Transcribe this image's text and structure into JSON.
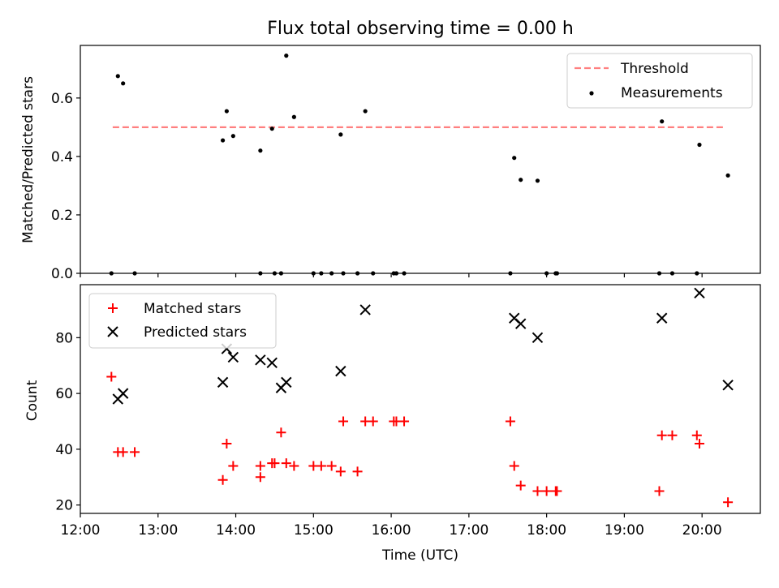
{
  "title": "Flux total observing time = 0.00 h",
  "colors": {
    "threshold": "#ff7f7f",
    "measurement": "#000000",
    "matched": "#ff0000",
    "predicted": "#000000"
  },
  "chart_data": [
    {
      "type": "scatter",
      "ylabel": "Matched/Predicted stars",
      "xlim": [
        "12:00",
        "20:45"
      ],
      "ylim": [
        0,
        0.78
      ],
      "yticks": [
        0.0,
        0.2,
        0.4,
        0.6
      ],
      "yticklabels": [
        "0.0",
        "0.2",
        "0.4",
        "0.6"
      ],
      "legend": {
        "position": "top-right",
        "entries": [
          "Threshold",
          "Measurements"
        ]
      },
      "series": [
        {
          "name": "Threshold",
          "style": "dashed-line",
          "x": [
            "12:25",
            "20:18"
          ],
          "y": [
            0.5,
            0.5
          ]
        },
        {
          "name": "Measurements",
          "style": "dot",
          "x": [
            "12:24",
            "12:29",
            "12:33",
            "12:42",
            "13:50",
            "13:53",
            "13:58",
            "14:19",
            "14:19",
            "14:28",
            "14:30",
            "14:35",
            "14:39",
            "14:45",
            "15:00",
            "15:06",
            "15:14",
            "15:21",
            "15:23",
            "15:34",
            "15:40",
            "15:46",
            "16:02",
            "16:04",
            "16:10",
            "17:32",
            "17:35",
            "17:40",
            "17:53",
            "18:00",
            "18:07",
            "18:08",
            "19:27",
            "19:29",
            "19:37",
            "19:56",
            "19:58",
            "20:20"
          ],
          "y": [
            0.0,
            0.675,
            0.65,
            0.0,
            0.455,
            0.555,
            0.47,
            0.42,
            0.0,
            0.495,
            0.0,
            0.0,
            0.745,
            0.535,
            0.0,
            0.0,
            0.0,
            0.475,
            0.0,
            0.0,
            0.555,
            0.0,
            0.0,
            0.0,
            0.0,
            0.0,
            0.395,
            0.32,
            0.317,
            0.0,
            0.0,
            0.0,
            0.0,
            0.52,
            0.0,
            0.0,
            0.44,
            0.335
          ]
        }
      ]
    },
    {
      "type": "scatter",
      "xlabel": "Time (UTC)",
      "ylabel": "Count",
      "xlim": [
        "12:00",
        "20:45"
      ],
      "ylim": [
        17,
        99
      ],
      "xticklabels": [
        "12:00",
        "13:00",
        "14:00",
        "15:00",
        "16:00",
        "17:00",
        "18:00",
        "19:00",
        "20:00"
      ],
      "yticks": [
        20,
        40,
        60,
        80
      ],
      "yticklabels": [
        "20",
        "40",
        "60",
        "80"
      ],
      "legend": {
        "position": "top-left",
        "entries": [
          "Matched stars",
          "Predicted stars"
        ]
      },
      "series": [
        {
          "name": "Matched stars",
          "style": "plus",
          "x": [
            "12:24",
            "12:29",
            "12:33",
            "12:42",
            "13:50",
            "13:53",
            "13:58",
            "14:19",
            "14:19",
            "14:28",
            "14:30",
            "14:35",
            "14:39",
            "14:45",
            "15:00",
            "15:06",
            "15:14",
            "15:21",
            "15:23",
            "15:34",
            "15:40",
            "15:46",
            "16:02",
            "16:04",
            "16:10",
            "17:32",
            "17:35",
            "17:40",
            "17:53",
            "18:00",
            "18:07",
            "18:08",
            "19:27",
            "19:29",
            "19:37",
            "19:56",
            "19:58",
            "20:20"
          ],
          "y": [
            66,
            39,
            39,
            39,
            29,
            42,
            34,
            30,
            34,
            35,
            35,
            46,
            35,
            34,
            34,
            34,
            34,
            32,
            50,
            32,
            50,
            50,
            50,
            50,
            50,
            50,
            34,
            27,
            25,
            25,
            25,
            25,
            25,
            45,
            45,
            45,
            42,
            21
          ]
        },
        {
          "name": "Predicted stars",
          "style": "x",
          "x": [
            "12:29",
            "12:33",
            "13:50",
            "13:53",
            "13:58",
            "14:19",
            "14:28",
            "14:35",
            "14:39",
            "15:21",
            "15:40",
            "17:35",
            "17:40",
            "17:53",
            "19:29",
            "19:58",
            "20:20"
          ],
          "y": [
            58,
            60,
            64,
            76,
            73,
            72,
            71,
            62,
            64,
            68,
            90,
            87,
            85,
            80,
            87,
            96,
            63
          ]
        }
      ]
    }
  ]
}
